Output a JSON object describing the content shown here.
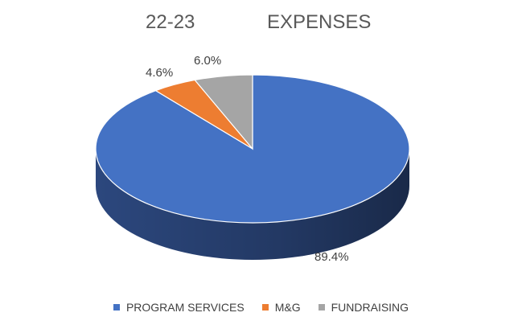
{
  "title": [
    "22-23",
    "EXPENSES"
  ],
  "chart_data": {
    "type": "pie",
    "title": "22-23 EXPENSES",
    "slices": [
      {
        "name": "PROGRAM SERVICES",
        "value": 89.4,
        "label": "89.4%",
        "color": "#4472C4",
        "side_color": "#2E4B84"
      },
      {
        "name": "M&G",
        "value": 4.6,
        "label": "4.6%",
        "color": "#ED7D31",
        "side_color": "#A1541F"
      },
      {
        "name": "FUNDRAISING",
        "value": 6.0,
        "label": "6.0%",
        "color": "#A5A5A5",
        "side_color": "#707070"
      }
    ],
    "legend": {
      "position": "bottom"
    },
    "three_d": true
  }
}
